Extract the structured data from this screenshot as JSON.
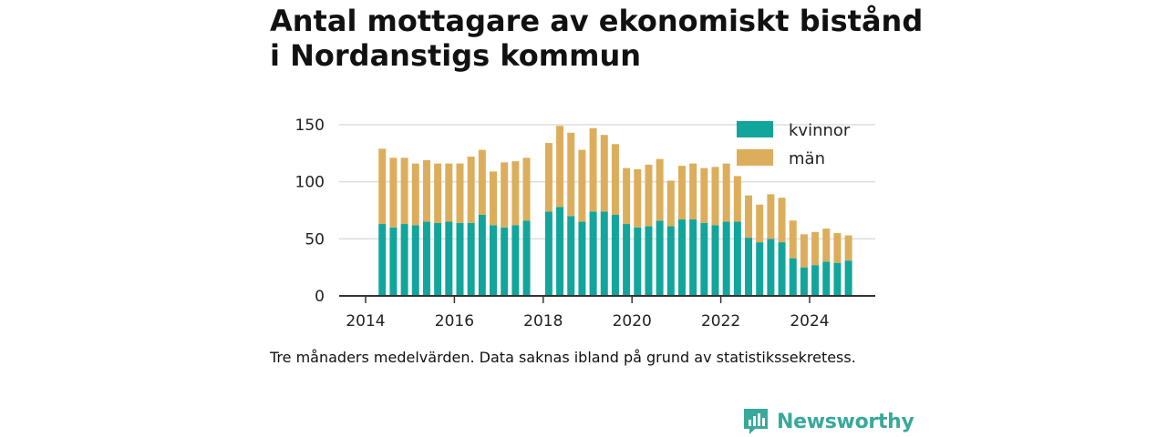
{
  "title": {
    "line1": "Antal mottagare av ekonomiskt bistånd",
    "line2": "i Nordanstigs kommun"
  },
  "caption": "Tre månaders medelvärden. Data saknas ibland på grund av statistikssekretess.",
  "brand": {
    "name": "Newsworthy",
    "icon": "newsworthy-logo-icon",
    "color": "#3aa89a"
  },
  "chart_data": {
    "type": "bar",
    "stacked": true,
    "ylim": [
      0,
      150
    ],
    "yticks": [
      0,
      50,
      100,
      150
    ],
    "xticks": [
      "2014",
      "2016",
      "2018",
      "2020",
      "2022",
      "2024"
    ],
    "grid": true,
    "legend_position": "top-right",
    "series": [
      {
        "name": "kvinnor",
        "color": "#12a59c"
      },
      {
        "name": "män",
        "color": "#dcae5c"
      }
    ],
    "x": [
      "2014-Q2",
      "2014-Q3",
      "2014-Q4",
      "2015-Q1",
      "2015-Q2",
      "2015-Q3",
      "2015-Q4",
      "2016-Q1",
      "2016-Q2",
      "2016-Q3",
      "2016-Q4",
      "2017-Q1",
      "2017-Q2",
      "2017-Q3",
      "2017-Q4",
      "2018-Q1",
      "2018-Q2",
      "2018-Q3",
      "2018-Q4",
      "2019-Q1",
      "2019-Q2",
      "2019-Q3",
      "2019-Q4",
      "2020-Q1",
      "2020-Q2",
      "2020-Q3",
      "2020-Q4",
      "2021-Q1",
      "2021-Q2",
      "2021-Q3",
      "2021-Q4",
      "2022-Q1",
      "2022-Q2",
      "2022-Q3",
      "2022-Q4",
      "2023-Q1",
      "2023-Q2",
      "2023-Q3",
      "2023-Q4",
      "2024-Q1",
      "2024-Q2",
      "2024-Q3",
      "2024-Q4"
    ],
    "kvinnor": [
      63,
      60,
      63,
      62,
      65,
      64,
      65,
      64,
      64,
      71,
      62,
      60,
      62,
      66,
      null,
      74,
      78,
      70,
      65,
      74,
      74,
      71,
      63,
      60,
      61,
      66,
      61,
      67,
      67,
      64,
      62,
      65,
      65,
      51,
      47,
      50,
      47,
      33,
      25,
      27,
      30,
      29,
      31
    ],
    "man": [
      66,
      61,
      58,
      54,
      54,
      52,
      51,
      52,
      58,
      57,
      47,
      57,
      56,
      55,
      null,
      60,
      71,
      73,
      63,
      73,
      67,
      62,
      49,
      51,
      54,
      54,
      40,
      47,
      49,
      48,
      51,
      51,
      40,
      37,
      33,
      39,
      39,
      33,
      29,
      29,
      29,
      26,
      22
    ]
  }
}
